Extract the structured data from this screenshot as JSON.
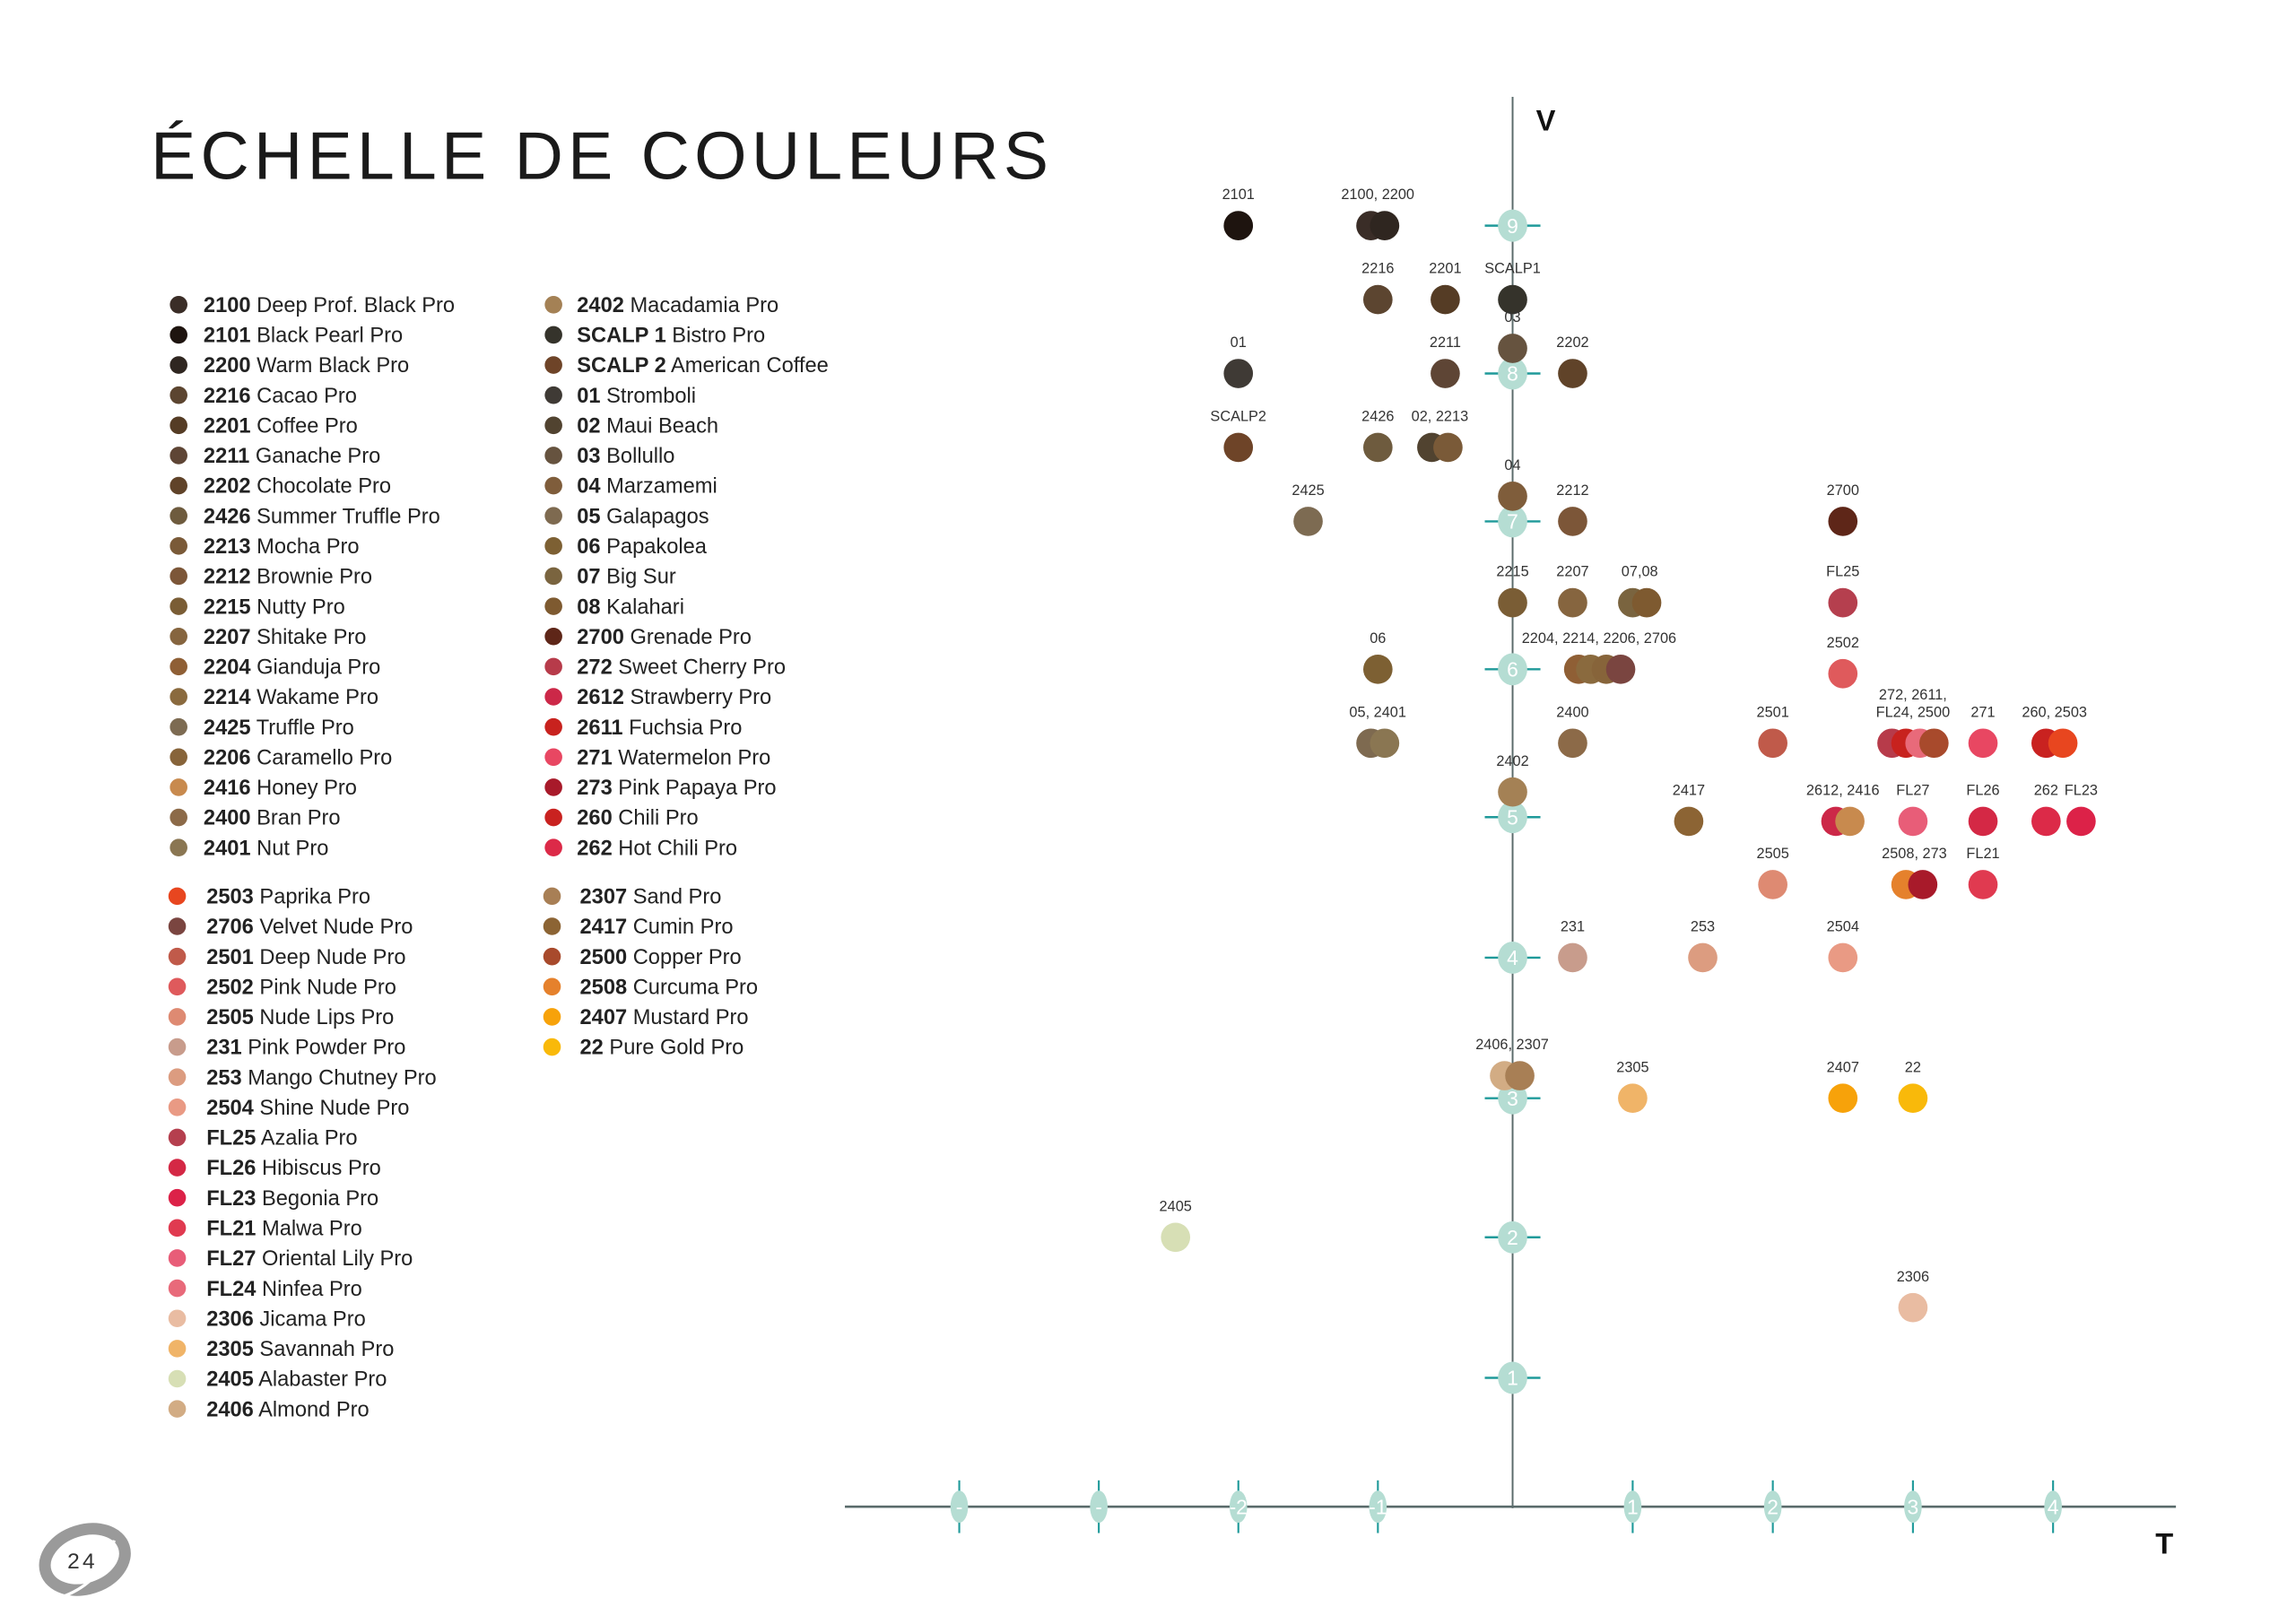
{
  "title": "ÉCHELLE DE COULEURS",
  "page_number": "24",
  "legend": {
    "group1_col1": [
      {
        "code": "2100",
        "name": "Deep Prof. Black Pro"
      },
      {
        "code": "2101",
        "name": "Black Pearl Pro"
      },
      {
        "code": "2200",
        "name": "Warm Black Pro"
      },
      {
        "code": "2216",
        "name": "Cacao Pro"
      },
      {
        "code": "2201",
        "name": "Coffee Pro"
      },
      {
        "code": "2211",
        "name": "Ganache Pro"
      },
      {
        "code": "2202",
        "name": "Chocolate Pro"
      },
      {
        "code": "2426",
        "name": "Summer Truffle Pro"
      },
      {
        "code": "2213",
        "name": "Mocha Pro"
      },
      {
        "code": "2212",
        "name": "Brownie Pro"
      },
      {
        "code": "2215",
        "name": "Nutty Pro"
      },
      {
        "code": "2207",
        "name": "Shitake Pro"
      },
      {
        "code": "2204",
        "name": "Gianduja Pro"
      },
      {
        "code": "2214",
        "name": "Wakame Pro"
      },
      {
        "code": "2425",
        "name": "Truffle Pro"
      },
      {
        "code": "2206",
        "name": "Caramello Pro"
      },
      {
        "code": "2416",
        "name": "Honey Pro"
      },
      {
        "code": "2400",
        "name": "Bran Pro"
      },
      {
        "code": "2401",
        "name": "Nut Pro"
      }
    ],
    "group1_col2": [
      {
        "code": "2402",
        "name": "Macadamia Pro"
      },
      {
        "code": "SCALP 1",
        "key": "SCALP1",
        "name": "Bistro Pro"
      },
      {
        "code": "SCALP 2",
        "key": "SCALP2",
        "name": "American Coffee"
      },
      {
        "code": "01",
        "name": "Stromboli"
      },
      {
        "code": "02",
        "name": "Maui Beach"
      },
      {
        "code": "03",
        "name": "Bollullo"
      },
      {
        "code": "04",
        "name": "Marzamemi"
      },
      {
        "code": "05",
        "name": "Galapagos"
      },
      {
        "code": "06",
        "name": "Papakolea"
      },
      {
        "code": "07",
        "name": "Big Sur"
      },
      {
        "code": "08",
        "name": "Kalahari"
      },
      {
        "code": "2700",
        "name": "Grenade Pro"
      },
      {
        "code": "272",
        "name": "Sweet Cherry Pro"
      },
      {
        "code": "2612",
        "name": "Strawberry Pro"
      },
      {
        "code": "2611",
        "name": "Fuchsia Pro"
      },
      {
        "code": "271",
        "name": "Watermelon Pro"
      },
      {
        "code": "273",
        "name": "Pink Papaya Pro"
      },
      {
        "code": "260",
        "name": "Chili Pro"
      },
      {
        "code": "262",
        "name": "Hot Chili Pro"
      }
    ],
    "group2_col1": [
      {
        "code": "2503",
        "name": "Paprika Pro"
      },
      {
        "code": "2706",
        "name": "Velvet Nude Pro"
      },
      {
        "code": "2501",
        "name": "Deep Nude Pro"
      },
      {
        "code": "2502",
        "name": "Pink Nude Pro"
      },
      {
        "code": "2505",
        "name": "Nude Lips Pro"
      },
      {
        "code": "231",
        "name": "Pink Powder Pro"
      },
      {
        "code": "253",
        "name": "Mango Chutney Pro"
      },
      {
        "code": "2504",
        "name": "Shine Nude Pro"
      },
      {
        "code": "FL25",
        "name": "Azalia Pro"
      },
      {
        "code": "FL26",
        "name": "Hibiscus Pro"
      },
      {
        "code": "FL23",
        "name": "Begonia Pro"
      },
      {
        "code": "FL21",
        "name": "Malwa Pro"
      },
      {
        "code": "FL27",
        "name": "Oriental Lily Pro"
      },
      {
        "code": "FL24",
        "name": "Ninfea Pro"
      },
      {
        "code": "2306",
        "name": "Jicama Pro"
      },
      {
        "code": "2305",
        "name": "Savannah Pro"
      },
      {
        "code": "2405",
        "name": "Alabaster Pro"
      },
      {
        "code": "2406",
        "name": "Almond Pro"
      }
    ],
    "group2_col2": [
      {
        "code": "2307",
        "name": "Sand Pro"
      },
      {
        "code": "2417",
        "name": "Cumin Pro"
      },
      {
        "code": "2500",
        "name": "Copper Pro"
      },
      {
        "code": "2508",
        "name": "Curcuma Pro"
      },
      {
        "code": "2407",
        "name": "Mustard Pro"
      },
      {
        "code": "22",
        "name": "Pure Gold Pro"
      }
    ]
  },
  "colors": {
    "2100": "#3a2d27",
    "2101": "#1e140f",
    "2200": "#2f2620",
    "2216": "#5c4530",
    "2201": "#553c25",
    "2211": "#5e4535",
    "2202": "#604329",
    "2426": "#6e5b3e",
    "2213": "#7a5a38",
    "2212": "#7c5638",
    "2215": "#7a5d35",
    "2207": "#86653f",
    "2204": "#8f5f35",
    "2214": "#8a6a3e",
    "2425": "#7d6b52",
    "2206": "#87643a",
    "2416": "#c88a4e",
    "2400": "#8c6a48",
    "2401": "#8a7652",
    "2402": "#a48155",
    "SCALP1": "#35332b",
    "SCALP2": "#6e4428",
    "01": "#3f3a35",
    "02": "#514330",
    "03": "#66533f",
    "04": "#7f5d3b",
    "05": "#7e6a50",
    "06": "#7d6033",
    "07": "#7a643f",
    "08": "#7e5a30",
    "2700": "#5e2618",
    "272": "#b73b4a",
    "2612": "#cc2848",
    "2611": "#c8221e",
    "271": "#e84762",
    "273": "#a81a2a",
    "260": "#c92220",
    "262": "#dc2a48",
    "2503": "#e8461f",
    "2706": "#7a4540",
    "2501": "#c05a4a",
    "2502": "#df5a5c",
    "2505": "#de8a72",
    "231": "#c89c8c",
    "253": "#dc9c80",
    "2504": "#e99a84",
    "FL25": "#b53f4e",
    "FL26": "#d42845",
    "FL23": "#dc2248",
    "FL21": "#e03a50",
    "FL27": "#e85d78",
    "FL24": "#e86a7a",
    "2306": "#e9bca2",
    "2305": "#f0b468",
    "2405": "#d7dfb5",
    "2406": "#d2ac84",
    "2307": "#a87f55",
    "2417": "#8c6434",
    "2500": "#a84a2c",
    "2508": "#e5812c",
    "2407": "#f7a20a",
    "22": "#f9b90a"
  },
  "chart_data": {
    "type": "scatter",
    "xlabel": "T",
    "ylabel": "V",
    "xlim": [
      -4.8,
      4.9
    ],
    "ylim": [
      0,
      9.8
    ],
    "x_ticks": [
      {
        "value": -4,
        "label": "-"
      },
      {
        "value": -3,
        "label": "-"
      },
      {
        "value": -2,
        "label": "-2"
      },
      {
        "value": -1,
        "label": "-1"
      },
      {
        "value": 1,
        "label": "1"
      },
      {
        "value": 2,
        "label": "2"
      },
      {
        "value": 3,
        "label": "3"
      },
      {
        "value": 4,
        "label": "4"
      }
    ],
    "y_ticks": [
      {
        "value": 1,
        "label": "1"
      },
      {
        "value": 2,
        "label": "2"
      },
      {
        "value": 3,
        "label": "3"
      },
      {
        "value": 4,
        "label": "4"
      },
      {
        "value": 5,
        "label": "5"
      },
      {
        "value": 6,
        "label": "6"
      },
      {
        "value": 7,
        "label": "7"
      },
      {
        "value": 8,
        "label": "8"
      },
      {
        "value": 9,
        "label": "9"
      }
    ],
    "axis_color": "#5a6b6b",
    "tick_color": "#1f9a9a",
    "tick_badge_color": "#b5ddd3",
    "groups": [
      {
        "label": [
          "2101"
        ],
        "points": [
          {
            "code": "2101",
            "t": -2,
            "v": 9
          }
        ]
      },
      {
        "label": [
          "2100, 2200"
        ],
        "points": [
          {
            "code": "2100",
            "t": -1.05,
            "v": 9
          },
          {
            "code": "2200",
            "t": -0.95,
            "v": 9
          }
        ]
      },
      {
        "label": [
          "2216"
        ],
        "points": [
          {
            "code": "2216",
            "t": -1,
            "v": 8.5
          }
        ]
      },
      {
        "label": [
          "2201"
        ],
        "points": [
          {
            "code": "2201",
            "t": -0.5,
            "v": 8.5
          }
        ]
      },
      {
        "label": [
          "SCALP1"
        ],
        "points": [
          {
            "code": "SCALP1",
            "t": 0,
            "v": 8.5
          }
        ]
      },
      {
        "label": [
          "03"
        ],
        "points": [
          {
            "code": "03",
            "t": 0,
            "v": 8.17
          }
        ]
      },
      {
        "label": [
          "01"
        ],
        "points": [
          {
            "code": "01",
            "t": -2,
            "v": 8
          }
        ]
      },
      {
        "label": [
          "2211"
        ],
        "points": [
          {
            "code": "2211",
            "t": -0.5,
            "v": 8
          }
        ]
      },
      {
        "label": [
          "2202"
        ],
        "points": [
          {
            "code": "2202",
            "t": 0.5,
            "v": 8
          }
        ]
      },
      {
        "label": [
          "SCALP2"
        ],
        "points": [
          {
            "code": "SCALP2",
            "t": -2,
            "v": 7.5
          }
        ]
      },
      {
        "label": [
          "2426"
        ],
        "points": [
          {
            "code": "2426",
            "t": -1,
            "v": 7.5
          }
        ]
      },
      {
        "label": [
          "02, 2213"
        ],
        "points": [
          {
            "code": "02",
            "t": -0.6,
            "v": 7.5
          },
          {
            "code": "2213",
            "t": -0.48,
            "v": 7.5
          }
        ]
      },
      {
        "label": [
          "04"
        ],
        "points": [
          {
            "code": "04",
            "t": 0,
            "v": 7.17
          }
        ]
      },
      {
        "label": [
          "2425"
        ],
        "points": [
          {
            "code": "2425",
            "t": -1.5,
            "v": 7
          }
        ]
      },
      {
        "label": [
          "2212"
        ],
        "points": [
          {
            "code": "2212",
            "t": 0.5,
            "v": 7
          }
        ]
      },
      {
        "label": [
          "2700"
        ],
        "points": [
          {
            "code": "2700",
            "t": 2.5,
            "v": 7
          }
        ]
      },
      {
        "label": [
          "2215"
        ],
        "points": [
          {
            "code": "2215",
            "t": 0,
            "v": 6.45
          }
        ]
      },
      {
        "label": [
          "2207"
        ],
        "points": [
          {
            "code": "2207",
            "t": 0.5,
            "v": 6.45
          }
        ]
      },
      {
        "label": [
          "07,08"
        ],
        "points": [
          {
            "code": "07",
            "t": 1,
            "v": 6.45
          },
          {
            "code": "08",
            "t": 1.1,
            "v": 6.45
          }
        ]
      },
      {
        "label": [
          "FL25"
        ],
        "points": [
          {
            "code": "FL25",
            "t": 2.5,
            "v": 6.45
          }
        ]
      },
      {
        "label": [
          "06"
        ],
        "points": [
          {
            "code": "06",
            "t": -1,
            "v": 6
          }
        ]
      },
      {
        "label": [
          "2204, 2214, 2206, 2706"
        ],
        "points": [
          {
            "code": "2204",
            "t": 0.55,
            "v": 6
          },
          {
            "code": "2214",
            "t": 0.65,
            "v": 6
          },
          {
            "code": "2206",
            "t": 0.78,
            "v": 6
          },
          {
            "code": "2706",
            "t": 0.9,
            "v": 6
          }
        ]
      },
      {
        "label": [
          "2502"
        ],
        "points": [
          {
            "code": "2502",
            "t": 2.5,
            "v": 5.97
          }
        ]
      },
      {
        "label": [
          "05, 2401"
        ],
        "points": [
          {
            "code": "05",
            "t": -1.05,
            "v": 5.5
          },
          {
            "code": "2401",
            "t": -0.95,
            "v": 5.5
          }
        ]
      },
      {
        "label": [
          "2400"
        ],
        "points": [
          {
            "code": "2400",
            "t": 0.5,
            "v": 5.5
          }
        ]
      },
      {
        "label": [
          "2501"
        ],
        "points": [
          {
            "code": "2501",
            "t": 2,
            "v": 5.5
          }
        ]
      },
      {
        "label": [
          "272, 2611,",
          "FL24, 2500"
        ],
        "points": [
          {
            "code": "272",
            "t": 2.85,
            "v": 5.5
          },
          {
            "code": "2611",
            "t": 2.95,
            "v": 5.5
          },
          {
            "code": "FL24",
            "t": 3.05,
            "v": 5.5
          },
          {
            "code": "2500",
            "t": 3.15,
            "v": 5.5
          }
        ]
      },
      {
        "label": [
          "271"
        ],
        "points": [
          {
            "code": "271",
            "t": 3.5,
            "v": 5.5
          }
        ]
      },
      {
        "label": [
          "260, 2503"
        ],
        "points": [
          {
            "code": "260",
            "t": 3.95,
            "v": 5.5
          },
          {
            "code": "2503",
            "t": 4.07,
            "v": 5.5
          }
        ]
      },
      {
        "label": [
          "2402"
        ],
        "points": [
          {
            "code": "2402",
            "t": 0,
            "v": 5.17
          }
        ]
      },
      {
        "label": [
          "2417"
        ],
        "points": [
          {
            "code": "2417",
            "t": 1.4,
            "v": 4.97
          }
        ]
      },
      {
        "label": [
          "2612, 2416"
        ],
        "points": [
          {
            "code": "2612",
            "t": 2.45,
            "v": 4.97
          },
          {
            "code": "2416",
            "t": 2.55,
            "v": 4.97
          }
        ]
      },
      {
        "label": [
          "FL27"
        ],
        "points": [
          {
            "code": "FL27",
            "t": 3,
            "v": 4.97
          }
        ]
      },
      {
        "label": [
          "FL26"
        ],
        "points": [
          {
            "code": "FL26",
            "t": 3.5,
            "v": 4.97
          }
        ]
      },
      {
        "label": [
          "262"
        ],
        "points": [
          {
            "code": "262",
            "t": 3.95,
            "v": 4.97
          }
        ]
      },
      {
        "label": [
          "FL23"
        ],
        "points": [
          {
            "code": "FL23",
            "t": 4.2,
            "v": 4.97
          }
        ]
      },
      {
        "label": [
          "2505"
        ],
        "points": [
          {
            "code": "2505",
            "t": 2,
            "v": 4.52
          }
        ]
      },
      {
        "label": [
          "2508, 273"
        ],
        "points": [
          {
            "code": "2508",
            "t": 2.95,
            "v": 4.52
          },
          {
            "code": "273",
            "t": 3.07,
            "v": 4.52
          }
        ]
      },
      {
        "label": [
          "FL21"
        ],
        "points": [
          {
            "code": "FL21",
            "t": 3.5,
            "v": 4.52
          }
        ]
      },
      {
        "label": [
          "231"
        ],
        "points": [
          {
            "code": "231",
            "t": 0.5,
            "v": 4
          }
        ]
      },
      {
        "label": [
          "253"
        ],
        "points": [
          {
            "code": "253",
            "t": 1.5,
            "v": 4
          }
        ]
      },
      {
        "label": [
          "2504"
        ],
        "points": [
          {
            "code": "2504",
            "t": 2.5,
            "v": 4
          }
        ]
      },
      {
        "label": [
          "2406, 2307"
        ],
        "points": [
          {
            "code": "2406",
            "t": -0.06,
            "v": 3.16
          },
          {
            "code": "2307",
            "t": 0.06,
            "v": 3.16
          }
        ]
      },
      {
        "label": [
          "2305"
        ],
        "points": [
          {
            "code": "2305",
            "t": 1,
            "v": 3
          }
        ]
      },
      {
        "label": [
          "2407"
        ],
        "points": [
          {
            "code": "2407",
            "t": 2.5,
            "v": 3
          }
        ]
      },
      {
        "label": [
          "22"
        ],
        "points": [
          {
            "code": "22",
            "t": 3,
            "v": 3
          }
        ]
      },
      {
        "label": [
          "2405"
        ],
        "points": [
          {
            "code": "2405",
            "t": -2.45,
            "v": 2
          }
        ]
      },
      {
        "label": [
          "2306"
        ],
        "points": [
          {
            "code": "2306",
            "t": 3,
            "v": 1.5
          }
        ]
      }
    ]
  }
}
